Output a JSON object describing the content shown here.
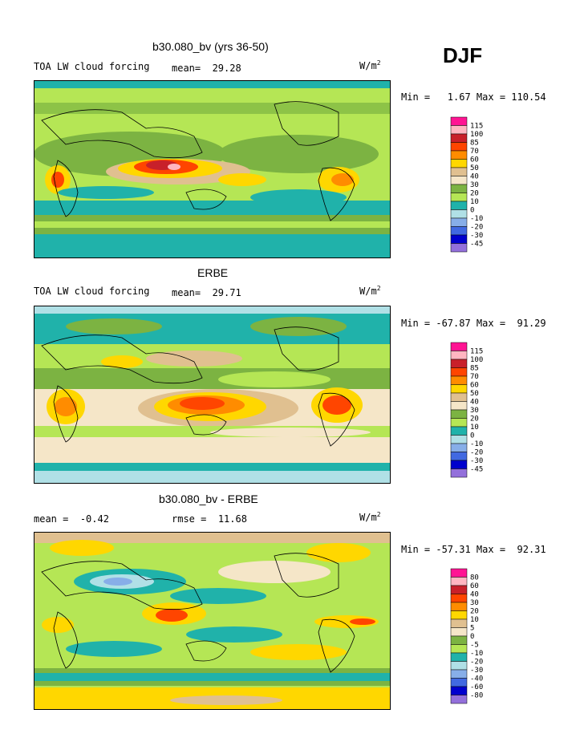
{
  "season": "DJF",
  "panels": [
    {
      "title": "b30.080_bv (yrs 36-50)",
      "left_label": "TOA LW cloud forcing",
      "stat_label": "mean=",
      "stat_value": "29.28",
      "unit_base": "W/m",
      "unit_exp": "2",
      "minmax": "Min =   1.67 Max = 110.54",
      "colorbar_levels": [
        "115",
        "100",
        "85",
        "70",
        "60",
        "50",
        "40",
        "30",
        "20",
        "10",
        "0",
        "-10",
        "-20",
        "-30",
        "-45"
      ]
    },
    {
      "title": "ERBE",
      "left_label": "TOA LW cloud forcing",
      "stat_label": "mean=",
      "stat_value": "29.71",
      "unit_base": "W/m",
      "unit_exp": "2",
      "minmax": "Min = -67.87 Max =  91.29",
      "colorbar_levels": [
        "115",
        "100",
        "85",
        "70",
        "60",
        "50",
        "40",
        "30",
        "20",
        "10",
        "0",
        "-10",
        "-20",
        "-30",
        "-45"
      ]
    },
    {
      "title": "b30.080_bv - ERBE",
      "left_label": "mean =",
      "left_value": "-0.42",
      "stat_label": "rmse =",
      "stat_value": "11.68",
      "unit_base": "W/m",
      "unit_exp": "2",
      "minmax": "Min = -57.31 Max =  92.31",
      "colorbar_levels": [
        "80",
        "60",
        "40",
        "30",
        "20",
        "10",
        "5",
        "0",
        "-5",
        "-10",
        "-20",
        "-30",
        "-40",
        "-60",
        "-80"
      ]
    }
  ],
  "colors": {
    "c16": "#ff1493",
    "c15": "#ffb6c1",
    "c14": "#c8202a",
    "c13": "#ff4500",
    "c12": "#ff8c00",
    "c11": "#ffd700",
    "c10": "#e0c090",
    "c9": "#f5e6c8",
    "c8": "#7cb342",
    "c7": "#b5e655",
    "c6": "#20b2aa",
    "c5": "#b0e0e6",
    "c4": "#87aee8",
    "c3": "#4169e1",
    "c2": "#0000cd",
    "c1": "#9370db"
  }
}
